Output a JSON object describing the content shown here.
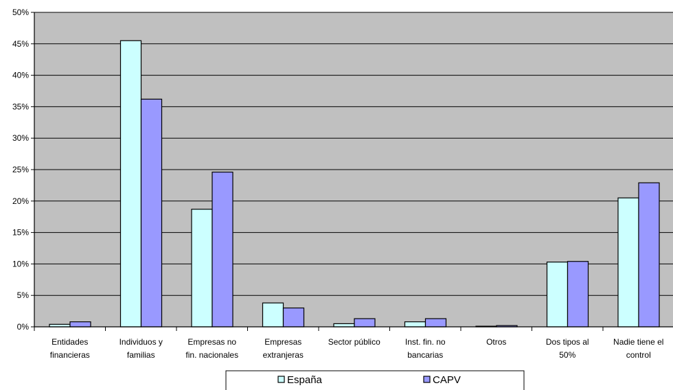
{
  "chart_data": {
    "type": "bar",
    "categories": [
      [
        "Entidades",
        "financieras"
      ],
      [
        "Individuos y",
        "familias"
      ],
      [
        "Empresas no",
        "fin. nacionales"
      ],
      [
        "Empresas",
        "extranjeras"
      ],
      [
        "Sector público"
      ],
      [
        "Inst. fin.  no",
        "bancarias"
      ],
      [
        "Otros"
      ],
      [
        "Dos tipos al",
        "50%"
      ],
      [
        "Nadie tiene el",
        "control"
      ]
    ],
    "series": [
      {
        "name": "España",
        "color": "#ccffff",
        "values": [
          0.4,
          45.5,
          18.7,
          3.8,
          0.5,
          0.8,
          0.1,
          10.3,
          20.5
        ]
      },
      {
        "name": "CAPV",
        "color": "#9999ff",
        "values": [
          0.8,
          36.2,
          24.6,
          3.0,
          1.3,
          1.3,
          0.2,
          10.4,
          22.9
        ]
      }
    ],
    "ylim": [
      0,
      50
    ],
    "yticks": [
      "0%",
      "5%",
      "10%",
      "15%",
      "20%",
      "25%",
      "30%",
      "35%",
      "40%",
      "45%",
      "50%"
    ],
    "plot_background": "#c0c0c0",
    "grid": true,
    "legend_position": "bottom"
  }
}
